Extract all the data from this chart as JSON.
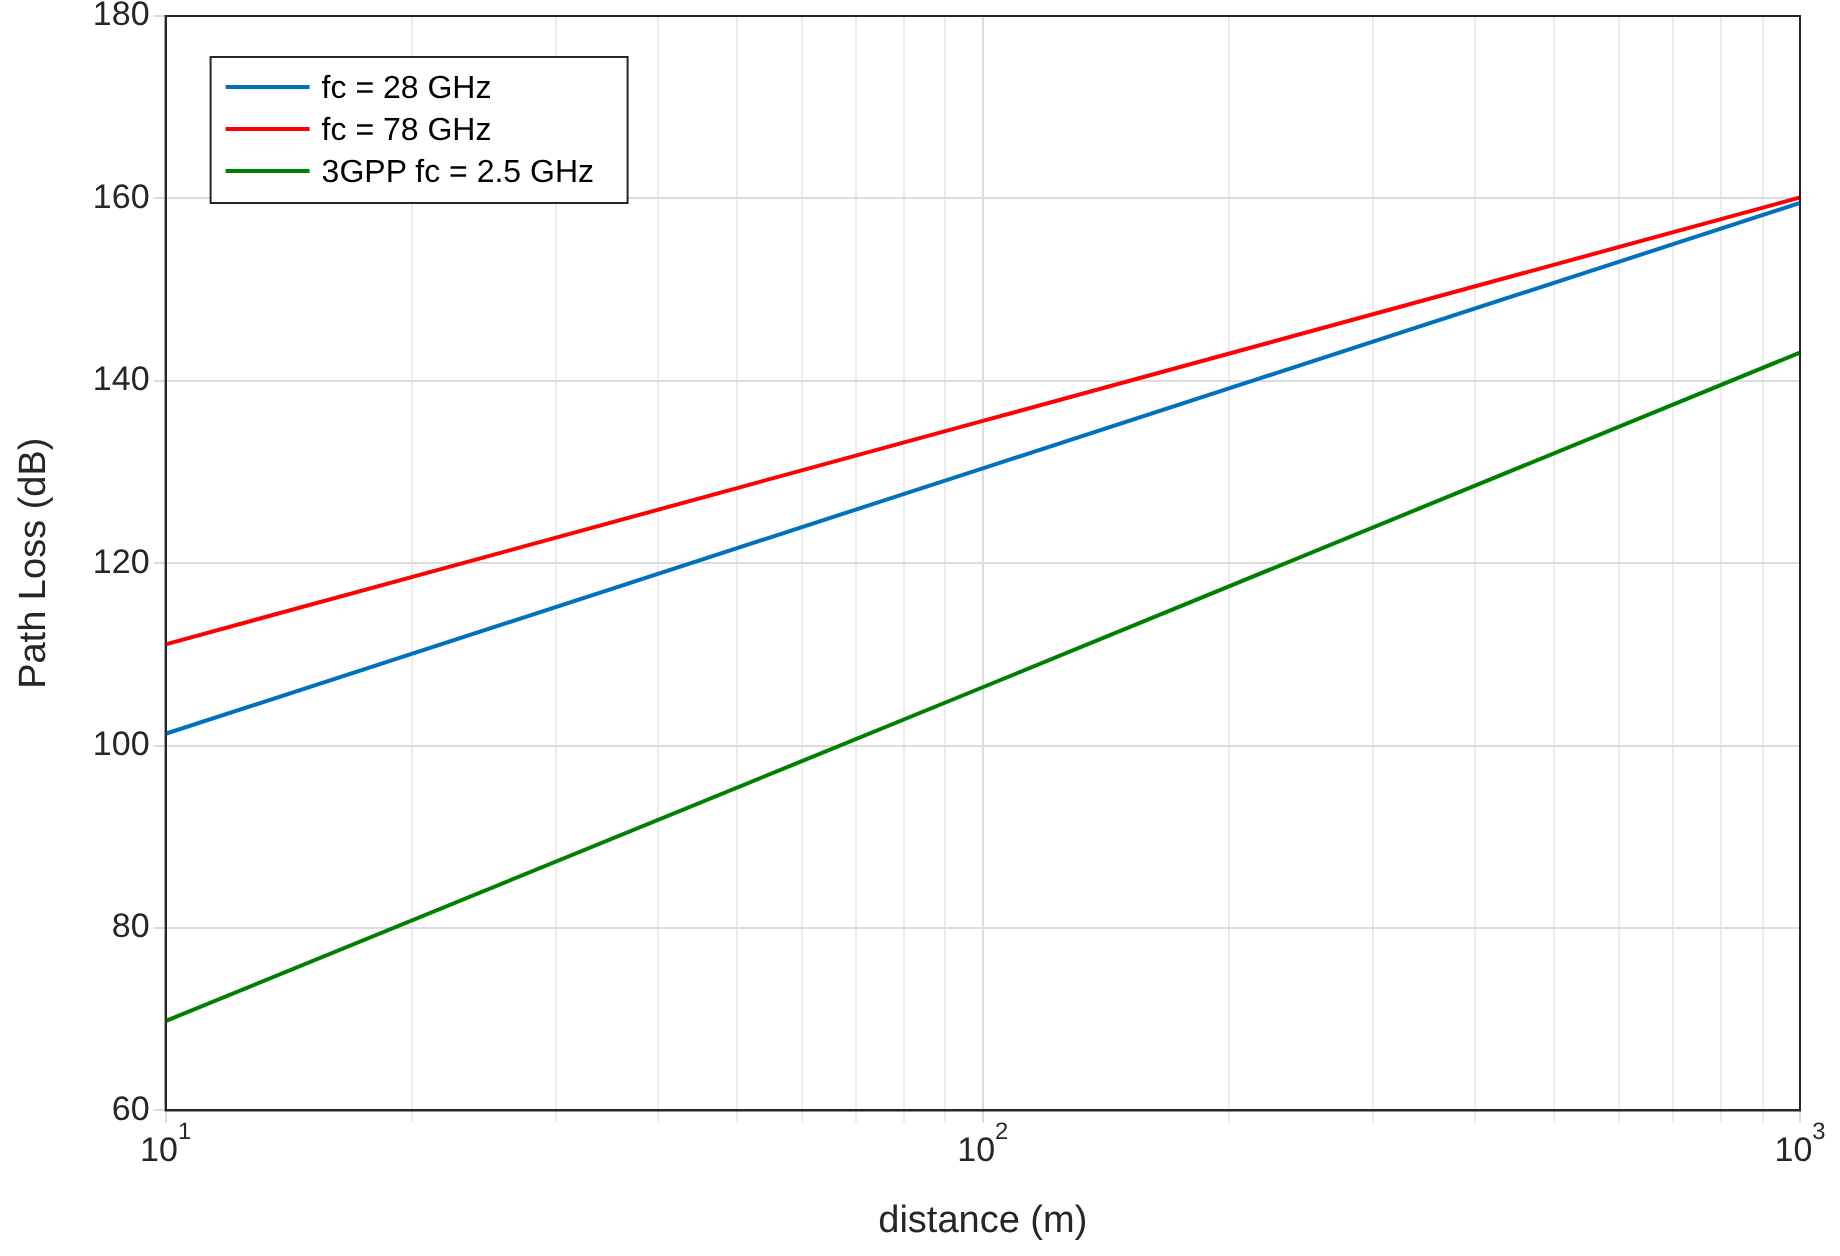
{
  "chart_data": {
    "type": "line",
    "xlabel": "distance (m)",
    "ylabel": "Path Loss (dB)",
    "log": "x",
    "x": [
      10,
      100,
      1000
    ],
    "series": [
      {
        "name": "fc = 28 GHz",
        "color": "#0072bd",
        "values": [
          101.3,
          130.4,
          159.5
        ]
      },
      {
        "name": "fc = 78 GHz",
        "color": "#ff0000",
        "values": [
          111.1,
          135.6,
          160.1
        ]
      },
      {
        "name": "3GPP fc = 2.5 GHz",
        "color": "#008000",
        "values": [
          69.8,
          106.4,
          143.1
        ]
      }
    ],
    "xlim": [
      10,
      1000
    ],
    "xticks": [
      {
        "value": 10,
        "label": "10$^{1}$"
      },
      {
        "value": 20,
        "label": null
      },
      {
        "value": 30,
        "label": null
      },
      {
        "value": 40,
        "label": null
      },
      {
        "value": 50,
        "label": null
      },
      {
        "value": 60,
        "label": null
      },
      {
        "value": 70,
        "label": null
      },
      {
        "value": 80,
        "label": null
      },
      {
        "value": 90,
        "label": null
      },
      {
        "value": 100,
        "label": "10$^{2}$"
      },
      {
        "value": 200,
        "label": null
      },
      {
        "value": 300,
        "label": null
      },
      {
        "value": 400,
        "label": null
      },
      {
        "value": 500,
        "label": null
      },
      {
        "value": 600,
        "label": null
      },
      {
        "value": 700,
        "label": null
      },
      {
        "value": 800,
        "label": null
      },
      {
        "value": 900,
        "label": null
      },
      {
        "value": 1000,
        "label": "10$^{3}$"
      }
    ],
    "ylim": [
      60,
      180
    ],
    "yticks": [
      60,
      80,
      100,
      120,
      140,
      160,
      180
    ],
    "grid": true,
    "legend": "top left",
    "marker": "none",
    "line_style": "solid"
  }
}
